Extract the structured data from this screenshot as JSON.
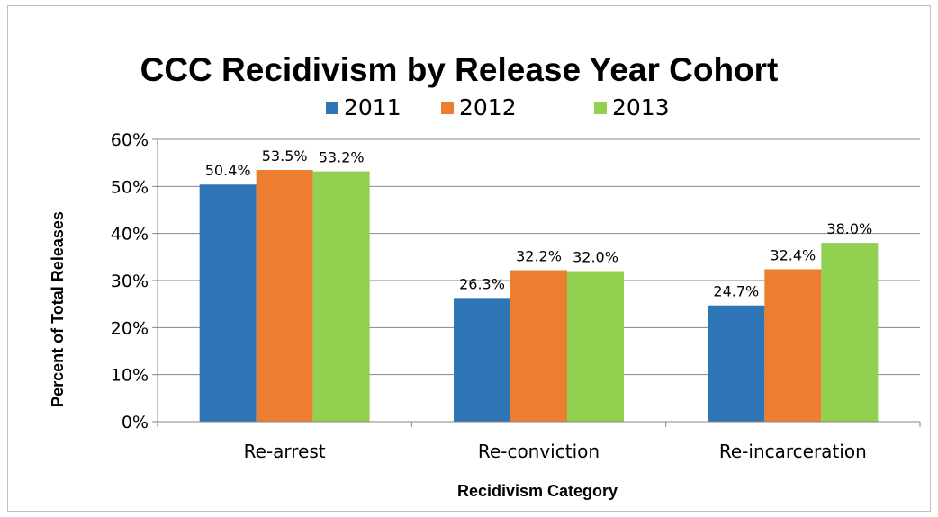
{
  "chart_data": {
    "type": "bar",
    "title": "CCC Recidivism by Release Year Cohort",
    "xlabel": "Recidivism Category",
    "ylabel": "Percent of Total Releases",
    "categories": [
      "Re-arrest",
      "Re-conviction",
      "Re-incarceration"
    ],
    "series": [
      {
        "name": "2011",
        "color": "#2e75b6",
        "values": [
          50.4,
          26.3,
          24.7
        ],
        "labels": [
          "50.4%",
          "26.3%",
          "24.7%"
        ]
      },
      {
        "name": "2012",
        "color": "#ed7d31",
        "values": [
          53.5,
          32.2,
          32.4
        ],
        "labels": [
          "53.5%",
          "32.2%",
          "32.4%"
        ]
      },
      {
        "name": "2013",
        "color": "#92d050",
        "values": [
          53.2,
          32.0,
          38.0
        ],
        "labels": [
          "53.2%",
          "32.0%",
          "38.0%"
        ]
      }
    ],
    "ylim": [
      0,
      60
    ],
    "yticks": [
      "0%",
      "10%",
      "20%",
      "30%",
      "40%",
      "50%",
      "60%"
    ],
    "grid": true,
    "legend": "top"
  }
}
